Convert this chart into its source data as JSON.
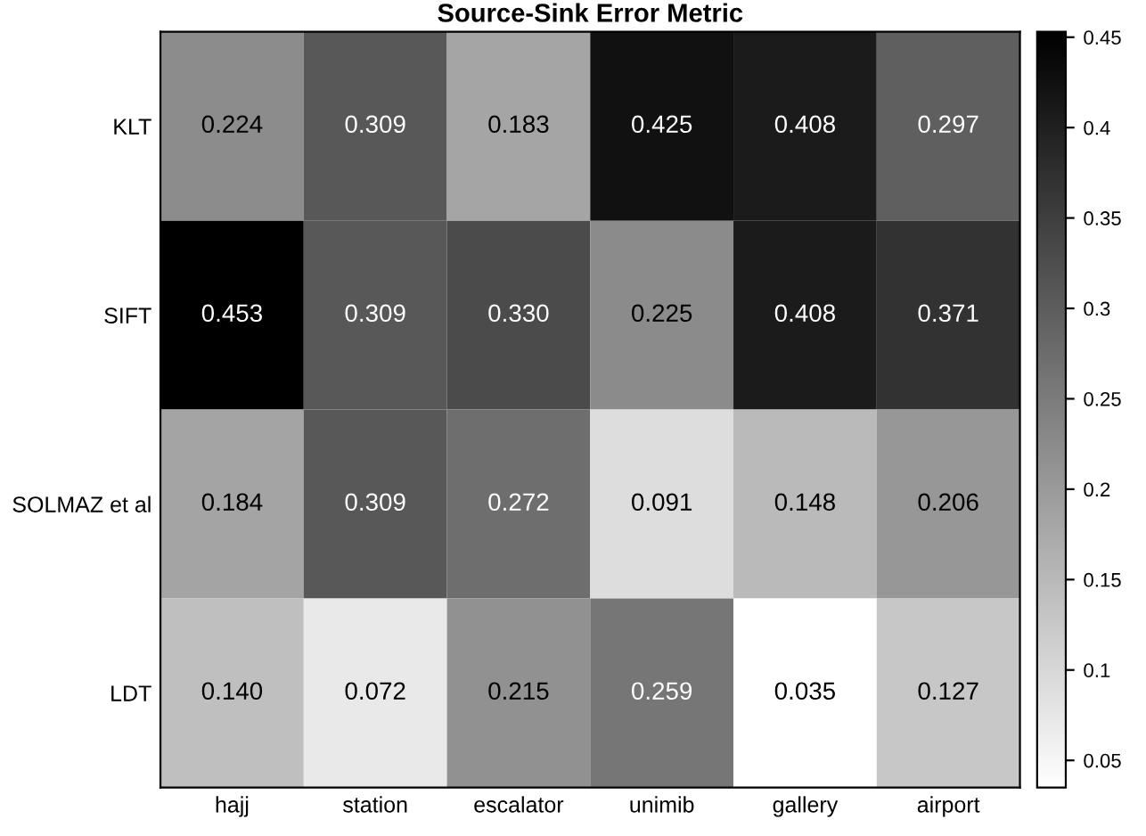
{
  "chart_data": {
    "type": "heatmap",
    "title": "Source-Sink Error Metric",
    "categories": [
      "hajj",
      "station",
      "escalator",
      "unimib",
      "gallery",
      "airport"
    ],
    "y_categories": [
      "KLT",
      "SIFT",
      "SOLMAZ et al",
      "LDT"
    ],
    "cells": [
      [
        0.224,
        0.309,
        0.183,
        0.425,
        0.408,
        0.297
      ],
      [
        0.453,
        0.309,
        0.33,
        0.225,
        0.408,
        0.371
      ],
      [
        0.184,
        0.309,
        0.272,
        0.091,
        0.148,
        0.206
      ],
      [
        0.14,
        0.072,
        0.215,
        0.259,
        0.035,
        0.127
      ]
    ],
    "cell_labels": [
      [
        "0.224",
        "0.309",
        "0.183",
        "0.425",
        "0.408",
        "0.297"
      ],
      [
        "0.453",
        "0.309",
        "0.330",
        "0.225",
        "0.408",
        "0.371"
      ],
      [
        "0.184",
        "0.309",
        "0.272",
        "0.091",
        "0.148",
        "0.206"
      ],
      [
        "0.140",
        "0.072",
        "0.215",
        "0.259",
        "0.035",
        "0.127"
      ]
    ],
    "clim": [
      0.035,
      0.453
    ],
    "cticks": [
      0.05,
      0.1,
      0.15,
      0.2,
      0.25,
      0.3,
      0.35,
      0.4,
      0.45
    ]
  }
}
